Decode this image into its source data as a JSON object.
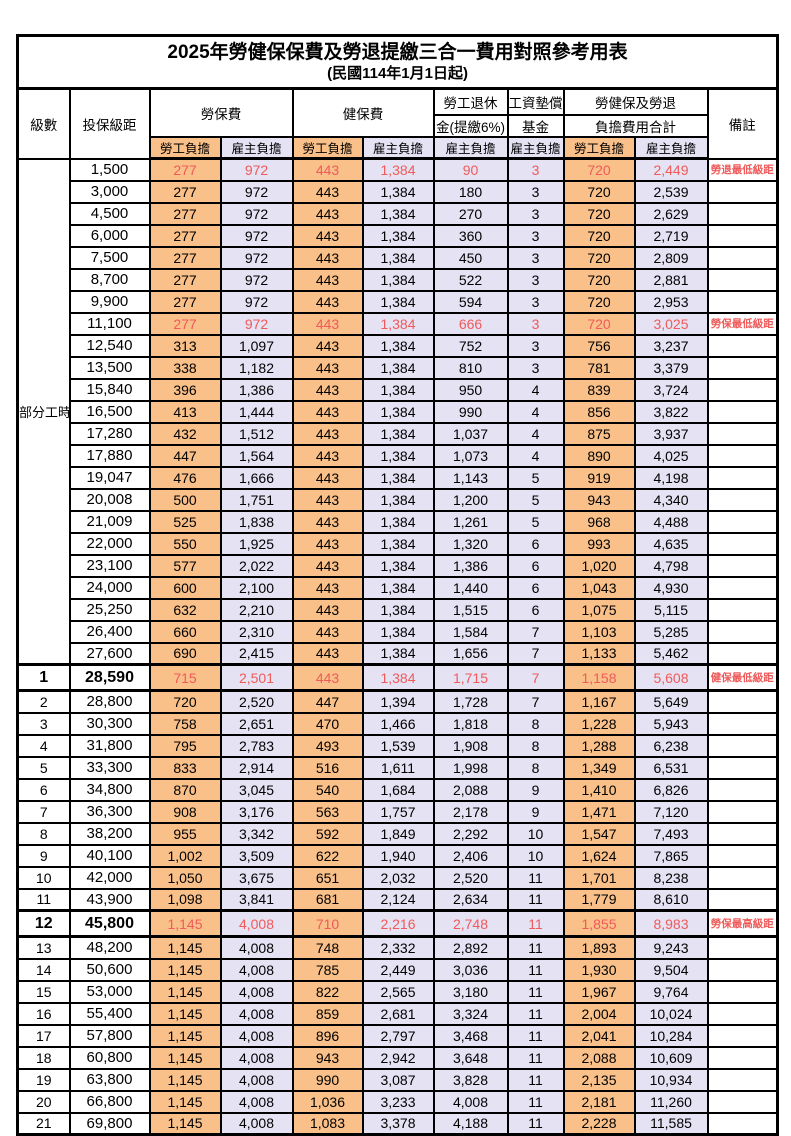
{
  "title": "2025年勞健保保費及勞退提繳三合一費用對照參考用表",
  "subtitle": "(民國114年1月1日起)",
  "colors": {
    "employee_bg": "#FAC089",
    "employer_bg": "#E5E2F4",
    "highlight_red": "#EF5A5A",
    "border": "#000000"
  },
  "headers": {
    "level": "級數",
    "salary": "投保級距",
    "labor_fee": "勞保費",
    "health_fee": "健保費",
    "pension_line1": "勞工退休",
    "pension_line2": "金(提繳6%)",
    "wage_fund_line1": "工資墊償",
    "wage_fund_line2": "基金",
    "total_line1": "勞健保及勞退",
    "total_line2": "負擔費用合計",
    "remark": "備註",
    "employee_share": "勞工負擔",
    "employer_share": "雇主負擔"
  },
  "part_time_label": "部分工時",
  "rows": [
    {
      "level": "",
      "salary": "1,500",
      "labor_emp": "277",
      "labor_er": "972",
      "health_emp": "443",
      "health_er": "1,384",
      "pension_er": "90",
      "fund_er": "3",
      "total_emp": "720",
      "total_er": "2,449",
      "remark": "勞退最低級距",
      "hl": true,
      "b": false
    },
    {
      "level": "",
      "salary": "3,000",
      "labor_emp": "277",
      "labor_er": "972",
      "health_emp": "443",
      "health_er": "1,384",
      "pension_er": "180",
      "fund_er": "3",
      "total_emp": "720",
      "total_er": "2,539",
      "remark": "",
      "hl": false,
      "b": false
    },
    {
      "level": "",
      "salary": "4,500",
      "labor_emp": "277",
      "labor_er": "972",
      "health_emp": "443",
      "health_er": "1,384",
      "pension_er": "270",
      "fund_er": "3",
      "total_emp": "720",
      "total_er": "2,629",
      "remark": "",
      "hl": false,
      "b": false
    },
    {
      "level": "",
      "salary": "6,000",
      "labor_emp": "277",
      "labor_er": "972",
      "health_emp": "443",
      "health_er": "1,384",
      "pension_er": "360",
      "fund_er": "3",
      "total_emp": "720",
      "total_er": "2,719",
      "remark": "",
      "hl": false,
      "b": false
    },
    {
      "level": "",
      "salary": "7,500",
      "labor_emp": "277",
      "labor_er": "972",
      "health_emp": "443",
      "health_er": "1,384",
      "pension_er": "450",
      "fund_er": "3",
      "total_emp": "720",
      "total_er": "2,809",
      "remark": "",
      "hl": false,
      "b": false
    },
    {
      "level": "",
      "salary": "8,700",
      "labor_emp": "277",
      "labor_er": "972",
      "health_emp": "443",
      "health_er": "1,384",
      "pension_er": "522",
      "fund_er": "3",
      "total_emp": "720",
      "total_er": "2,881",
      "remark": "",
      "hl": false,
      "b": false
    },
    {
      "level": "",
      "salary": "9,900",
      "labor_emp": "277",
      "labor_er": "972",
      "health_emp": "443",
      "health_er": "1,384",
      "pension_er": "594",
      "fund_er": "3",
      "total_emp": "720",
      "total_er": "2,953",
      "remark": "",
      "hl": false,
      "b": false
    },
    {
      "level": "",
      "salary": "11,100",
      "labor_emp": "277",
      "labor_er": "972",
      "health_emp": "443",
      "health_er": "1,384",
      "pension_er": "666",
      "fund_er": "3",
      "total_emp": "720",
      "total_er": "3,025",
      "remark": "勞保最低級距",
      "hl": true,
      "b": false
    },
    {
      "level": "",
      "salary": "12,540",
      "labor_emp": "313",
      "labor_er": "1,097",
      "health_emp": "443",
      "health_er": "1,384",
      "pension_er": "752",
      "fund_er": "3",
      "total_emp": "756",
      "total_er": "3,237",
      "remark": "",
      "hl": false,
      "b": false
    },
    {
      "level": "",
      "salary": "13,500",
      "labor_emp": "338",
      "labor_er": "1,182",
      "health_emp": "443",
      "health_er": "1,384",
      "pension_er": "810",
      "fund_er": "3",
      "total_emp": "781",
      "total_er": "3,379",
      "remark": "",
      "hl": false,
      "b": false
    },
    {
      "level": "",
      "salary": "15,840",
      "labor_emp": "396",
      "labor_er": "1,386",
      "health_emp": "443",
      "health_er": "1,384",
      "pension_er": "950",
      "fund_er": "4",
      "total_emp": "839",
      "total_er": "3,724",
      "remark": "",
      "hl": false,
      "b": false
    },
    {
      "level": "",
      "salary": "16,500",
      "labor_emp": "413",
      "labor_er": "1,444",
      "health_emp": "443",
      "health_er": "1,384",
      "pension_er": "990",
      "fund_er": "4",
      "total_emp": "856",
      "total_er": "3,822",
      "remark": "",
      "hl": false,
      "b": false
    },
    {
      "level": "",
      "salary": "17,280",
      "labor_emp": "432",
      "labor_er": "1,512",
      "health_emp": "443",
      "health_er": "1,384",
      "pension_er": "1,037",
      "fund_er": "4",
      "total_emp": "875",
      "total_er": "3,937",
      "remark": "",
      "hl": false,
      "b": false
    },
    {
      "level": "",
      "salary": "17,880",
      "labor_emp": "447",
      "labor_er": "1,564",
      "health_emp": "443",
      "health_er": "1,384",
      "pension_er": "1,073",
      "fund_er": "4",
      "total_emp": "890",
      "total_er": "4,025",
      "remark": "",
      "hl": false,
      "b": false
    },
    {
      "level": "",
      "salary": "19,047",
      "labor_emp": "476",
      "labor_er": "1,666",
      "health_emp": "443",
      "health_er": "1,384",
      "pension_er": "1,143",
      "fund_er": "5",
      "total_emp": "919",
      "total_er": "4,198",
      "remark": "",
      "hl": false,
      "b": false
    },
    {
      "level": "",
      "salary": "20,008",
      "labor_emp": "500",
      "labor_er": "1,751",
      "health_emp": "443",
      "health_er": "1,384",
      "pension_er": "1,200",
      "fund_er": "5",
      "total_emp": "943",
      "total_er": "4,340",
      "remark": "",
      "hl": false,
      "b": false
    },
    {
      "level": "",
      "salary": "21,009",
      "labor_emp": "525",
      "labor_er": "1,838",
      "health_emp": "443",
      "health_er": "1,384",
      "pension_er": "1,261",
      "fund_er": "5",
      "total_emp": "968",
      "total_er": "4,488",
      "remark": "",
      "hl": false,
      "b": false
    },
    {
      "level": "",
      "salary": "22,000",
      "labor_emp": "550",
      "labor_er": "1,925",
      "health_emp": "443",
      "health_er": "1,384",
      "pension_er": "1,320",
      "fund_er": "6",
      "total_emp": "993",
      "total_er": "4,635",
      "remark": "",
      "hl": false,
      "b": false
    },
    {
      "level": "",
      "salary": "23,100",
      "labor_emp": "577",
      "labor_er": "2,022",
      "health_emp": "443",
      "health_er": "1,384",
      "pension_er": "1,386",
      "fund_er": "6",
      "total_emp": "1,020",
      "total_er": "4,798",
      "remark": "",
      "hl": false,
      "b": false
    },
    {
      "level": "",
      "salary": "24,000",
      "labor_emp": "600",
      "labor_er": "2,100",
      "health_emp": "443",
      "health_er": "1,384",
      "pension_er": "1,440",
      "fund_er": "6",
      "total_emp": "1,043",
      "total_er": "4,930",
      "remark": "",
      "hl": false,
      "b": false
    },
    {
      "level": "",
      "salary": "25,250",
      "labor_emp": "632",
      "labor_er": "2,210",
      "health_emp": "443",
      "health_er": "1,384",
      "pension_er": "1,515",
      "fund_er": "6",
      "total_emp": "1,075",
      "total_er": "5,115",
      "remark": "",
      "hl": false,
      "b": false
    },
    {
      "level": "",
      "salary": "26,400",
      "labor_emp": "660",
      "labor_er": "2,310",
      "health_emp": "443",
      "health_er": "1,384",
      "pension_er": "1,584",
      "fund_er": "7",
      "total_emp": "1,103",
      "total_er": "5,285",
      "remark": "",
      "hl": false,
      "b": false
    },
    {
      "level": "",
      "salary": "27,600",
      "labor_emp": "690",
      "labor_er": "2,415",
      "health_emp": "443",
      "health_er": "1,384",
      "pension_er": "1,656",
      "fund_er": "7",
      "total_emp": "1,133",
      "total_er": "5,462",
      "remark": "",
      "hl": false,
      "b": false
    },
    {
      "level": "1",
      "salary": "28,590",
      "labor_emp": "715",
      "labor_er": "2,501",
      "health_emp": "443",
      "health_er": "1,384",
      "pension_er": "1,715",
      "fund_er": "7",
      "total_emp": "1,158",
      "total_er": "5,608",
      "remark": "健保最低級距",
      "hl": true,
      "b": true
    },
    {
      "level": "2",
      "salary": "28,800",
      "labor_emp": "720",
      "labor_er": "2,520",
      "health_emp": "447",
      "health_er": "1,394",
      "pension_er": "1,728",
      "fund_er": "7",
      "total_emp": "1,167",
      "total_er": "5,649",
      "remark": "",
      "hl": false,
      "b": false
    },
    {
      "level": "3",
      "salary": "30,300",
      "labor_emp": "758",
      "labor_er": "2,651",
      "health_emp": "470",
      "health_er": "1,466",
      "pension_er": "1,818",
      "fund_er": "8",
      "total_emp": "1,228",
      "total_er": "5,943",
      "remark": "",
      "hl": false,
      "b": false
    },
    {
      "level": "4",
      "salary": "31,800",
      "labor_emp": "795",
      "labor_er": "2,783",
      "health_emp": "493",
      "health_er": "1,539",
      "pension_er": "1,908",
      "fund_er": "8",
      "total_emp": "1,288",
      "total_er": "6,238",
      "remark": "",
      "hl": false,
      "b": false
    },
    {
      "level": "5",
      "salary": "33,300",
      "labor_emp": "833",
      "labor_er": "2,914",
      "health_emp": "516",
      "health_er": "1,611",
      "pension_er": "1,998",
      "fund_er": "8",
      "total_emp": "1,349",
      "total_er": "6,531",
      "remark": "",
      "hl": false,
      "b": false
    },
    {
      "level": "6",
      "salary": "34,800",
      "labor_emp": "870",
      "labor_er": "3,045",
      "health_emp": "540",
      "health_er": "1,684",
      "pension_er": "2,088",
      "fund_er": "9",
      "total_emp": "1,410",
      "total_er": "6,826",
      "remark": "",
      "hl": false,
      "b": false
    },
    {
      "level": "7",
      "salary": "36,300",
      "labor_emp": "908",
      "labor_er": "3,176",
      "health_emp": "563",
      "health_er": "1,757",
      "pension_er": "2,178",
      "fund_er": "9",
      "total_emp": "1,471",
      "total_er": "7,120",
      "remark": "",
      "hl": false,
      "b": false
    },
    {
      "level": "8",
      "salary": "38,200",
      "labor_emp": "955",
      "labor_er": "3,342",
      "health_emp": "592",
      "health_er": "1,849",
      "pension_er": "2,292",
      "fund_er": "10",
      "total_emp": "1,547",
      "total_er": "7,493",
      "remark": "",
      "hl": false,
      "b": false
    },
    {
      "level": "9",
      "salary": "40,100",
      "labor_emp": "1,002",
      "labor_er": "3,509",
      "health_emp": "622",
      "health_er": "1,940",
      "pension_er": "2,406",
      "fund_er": "10",
      "total_emp": "1,624",
      "total_er": "7,865",
      "remark": "",
      "hl": false,
      "b": false
    },
    {
      "level": "10",
      "salary": "42,000",
      "labor_emp": "1,050",
      "labor_er": "3,675",
      "health_emp": "651",
      "health_er": "2,032",
      "pension_er": "2,520",
      "fund_er": "11",
      "total_emp": "1,701",
      "total_er": "8,238",
      "remark": "",
      "hl": false,
      "b": false
    },
    {
      "level": "11",
      "salary": "43,900",
      "labor_emp": "1,098",
      "labor_er": "3,841",
      "health_emp": "681",
      "health_er": "2,124",
      "pension_er": "2,634",
      "fund_er": "11",
      "total_emp": "1,779",
      "total_er": "8,610",
      "remark": "",
      "hl": false,
      "b": false
    },
    {
      "level": "12",
      "salary": "45,800",
      "labor_emp": "1,145",
      "labor_er": "4,008",
      "health_emp": "710",
      "health_er": "2,216",
      "pension_er": "2,748",
      "fund_er": "11",
      "total_emp": "1,855",
      "total_er": "8,983",
      "remark": "勞保最高級距",
      "hl": true,
      "b": true
    },
    {
      "level": "13",
      "salary": "48,200",
      "labor_emp": "1,145",
      "labor_er": "4,008",
      "health_emp": "748",
      "health_er": "2,332",
      "pension_er": "2,892",
      "fund_er": "11",
      "total_emp": "1,893",
      "total_er": "9,243",
      "remark": "",
      "hl": false,
      "b": false
    },
    {
      "level": "14",
      "salary": "50,600",
      "labor_emp": "1,145",
      "labor_er": "4,008",
      "health_emp": "785",
      "health_er": "2,449",
      "pension_er": "3,036",
      "fund_er": "11",
      "total_emp": "1,930",
      "total_er": "9,504",
      "remark": "",
      "hl": false,
      "b": false
    },
    {
      "level": "15",
      "salary": "53,000",
      "labor_emp": "1,145",
      "labor_er": "4,008",
      "health_emp": "822",
      "health_er": "2,565",
      "pension_er": "3,180",
      "fund_er": "11",
      "total_emp": "1,967",
      "total_er": "9,764",
      "remark": "",
      "hl": false,
      "b": false
    },
    {
      "level": "16",
      "salary": "55,400",
      "labor_emp": "1,145",
      "labor_er": "4,008",
      "health_emp": "859",
      "health_er": "2,681",
      "pension_er": "3,324",
      "fund_er": "11",
      "total_emp": "2,004",
      "total_er": "10,024",
      "remark": "",
      "hl": false,
      "b": false
    },
    {
      "level": "17",
      "salary": "57,800",
      "labor_emp": "1,145",
      "labor_er": "4,008",
      "health_emp": "896",
      "health_er": "2,797",
      "pension_er": "3,468",
      "fund_er": "11",
      "total_emp": "2,041",
      "total_er": "10,284",
      "remark": "",
      "hl": false,
      "b": false
    },
    {
      "level": "18",
      "salary": "60,800",
      "labor_emp": "1,145",
      "labor_er": "4,008",
      "health_emp": "943",
      "health_er": "2,942",
      "pension_er": "3,648",
      "fund_er": "11",
      "total_emp": "2,088",
      "total_er": "10,609",
      "remark": "",
      "hl": false,
      "b": false
    },
    {
      "level": "19",
      "salary": "63,800",
      "labor_emp": "1,145",
      "labor_er": "4,008",
      "health_emp": "990",
      "health_er": "3,087",
      "pension_er": "3,828",
      "fund_er": "11",
      "total_emp": "2,135",
      "total_er": "10,934",
      "remark": "",
      "hl": false,
      "b": false
    },
    {
      "level": "20",
      "salary": "66,800",
      "labor_emp": "1,145",
      "labor_er": "4,008",
      "health_emp": "1,036",
      "health_er": "3,233",
      "pension_er": "4,008",
      "fund_er": "11",
      "total_emp": "2,181",
      "total_er": "11,260",
      "remark": "",
      "hl": false,
      "b": false
    },
    {
      "level": "21",
      "salary": "69,800",
      "labor_emp": "1,145",
      "labor_er": "4,008",
      "health_emp": "1,083",
      "health_er": "3,378",
      "pension_er": "4,188",
      "fund_er": "11",
      "total_emp": "2,228",
      "total_er": "11,585",
      "remark": "",
      "hl": false,
      "b": false
    }
  ]
}
